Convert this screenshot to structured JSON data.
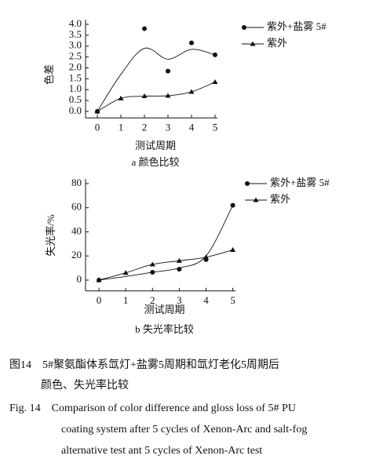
{
  "chart_data": [
    {
      "type": "line",
      "subtitle": "a  颜色比较",
      "xlabel": "测试周期",
      "ylabel": "色差",
      "xlim": [
        -0.5,
        5.1
      ],
      "xticks": [
        0,
        1,
        2,
        3,
        4,
        5
      ],
      "ylim": [
        -0.3,
        4.0
      ],
      "yticks": [
        {
          "value": 0,
          "label": "0.0"
        },
        0.5,
        {
          "value": 1,
          "label": "1.0"
        },
        1.5,
        {
          "value": 2,
          "label": "2.0"
        },
        2.5,
        {
          "value": 3,
          "label": "3.0"
        },
        3.5,
        {
          "value": 4,
          "label": "4.0"
        }
      ],
      "series": [
        {
          "name": "紫外+盐雾  5#",
          "color": "#111111",
          "marker": "circle",
          "x": [
            0,
            2,
            3,
            4,
            5
          ],
          "values": [
            0,
            3.8,
            1.85,
            3.15,
            2.6
          ],
          "fit": {
            "x": [
              0,
              1,
              2,
              3,
              4,
              5
            ],
            "values": [
              0,
              1.7,
              2.9,
              2.4,
              2.85,
              2.6
            ]
          }
        },
        {
          "name": "紫外",
          "color": "#111111",
          "marker": "triangle",
          "x": [
            0,
            1,
            2,
            3,
            4,
            5
          ],
          "values": [
            0,
            0.6,
            0.7,
            0.72,
            0.9,
            1.35
          ],
          "fit": {
            "x": [
              0,
              1,
              2,
              3,
              4,
              5
            ],
            "values": [
              0,
              0.6,
              0.7,
              0.72,
              0.9,
              1.35
            ]
          }
        }
      ]
    },
    {
      "type": "line",
      "subtitle": "b  失光率比较",
      "xlabel": "测试周期",
      "ylabel": "失光率/%",
      "xlim": [
        -0.5,
        5.1
      ],
      "xticks": [
        0,
        1,
        2,
        3,
        4,
        5
      ],
      "ylim": [
        -9,
        80
      ],
      "yticks": [
        0,
        20,
        40,
        60,
        80
      ],
      "series": [
        {
          "name": "紫外+盐雾  5#",
          "color": "#111111",
          "marker": "circle",
          "x": [
            0,
            2,
            3,
            4,
            5
          ],
          "values": [
            0,
            6.5,
            9,
            17,
            62
          ],
          "fit": {
            "x": [
              0,
              1,
              2,
              3,
              4,
              5
            ],
            "values": [
              0,
              3,
              6.5,
              10,
              20,
              62
            ]
          }
        },
        {
          "name": "紫外",
          "color": "#111111",
          "marker": "triangle",
          "x": [
            0,
            1,
            2,
            3,
            4,
            5
          ],
          "values": [
            0,
            6,
            13,
            16,
            19,
            25
          ],
          "fit": {
            "x": [
              0,
              1,
              2,
              3,
              4,
              5
            ],
            "values": [
              0,
              6,
              13,
              16,
              19,
              25
            ]
          }
        }
      ]
    }
  ],
  "caption": {
    "lines": [
      "图14　5#聚氨酯体系氙灯+盐雾5周期和氙灯老化5周期后",
      "颜色、失光率比较",
      "Fig. 14　Comparison of color difference and gloss loss of 5# PU",
      "coating system after 5 cycles of Xenon-Arc and salt-fog",
      "alternative test ant 5 cycles of Xenon-Arc test"
    ]
  }
}
